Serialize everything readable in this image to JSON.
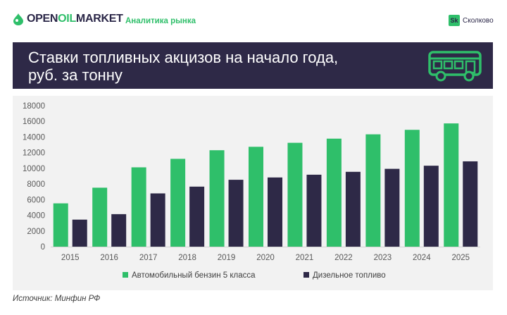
{
  "header": {
    "logo_open": "OPEN",
    "logo_oil": "OIL",
    "logo_market": "MARKET",
    "subtitle": "Аналитика рынка",
    "partner_badge": "Sk",
    "partner_name": "Сколково"
  },
  "banner": {
    "title_line1": "Ставки топливных акцизов на начало года,",
    "title_line2": "руб. за тонну",
    "icon": "bus-icon"
  },
  "source": "Источник: Минфин РФ",
  "colors": {
    "accent_green": "#2fbf6a",
    "navy": "#2e2947",
    "panel": "#f2f2f2"
  },
  "chart_data": {
    "type": "bar",
    "categories": [
      "2015",
      "2016",
      "2017",
      "2018",
      "2019",
      "2020",
      "2021",
      "2022",
      "2023",
      "2024",
      "2025"
    ],
    "series": [
      {
        "name": "Автомобильный бензин 5 класса",
        "color": "#2fbf6a",
        "values": [
          5530,
          7530,
          10130,
          11213,
          12314,
          12752,
          13262,
          13793,
          14345,
          14919,
          15738
        ]
      },
      {
        "name": "Дизельное топливо",
        "color": "#2e2947",
        "values": [
          3450,
          4150,
          6800,
          7665,
          8541,
          8835,
          9188,
          9556,
          9938,
          10336,
          10893
        ]
      }
    ],
    "yticks": [
      "0",
      "2000",
      "4000",
      "6000",
      "8000",
      "10000",
      "12000",
      "14000",
      "16000",
      "18000"
    ],
    "ylim": [
      0,
      18000
    ],
    "grid": false,
    "legend_position": "bottom"
  }
}
